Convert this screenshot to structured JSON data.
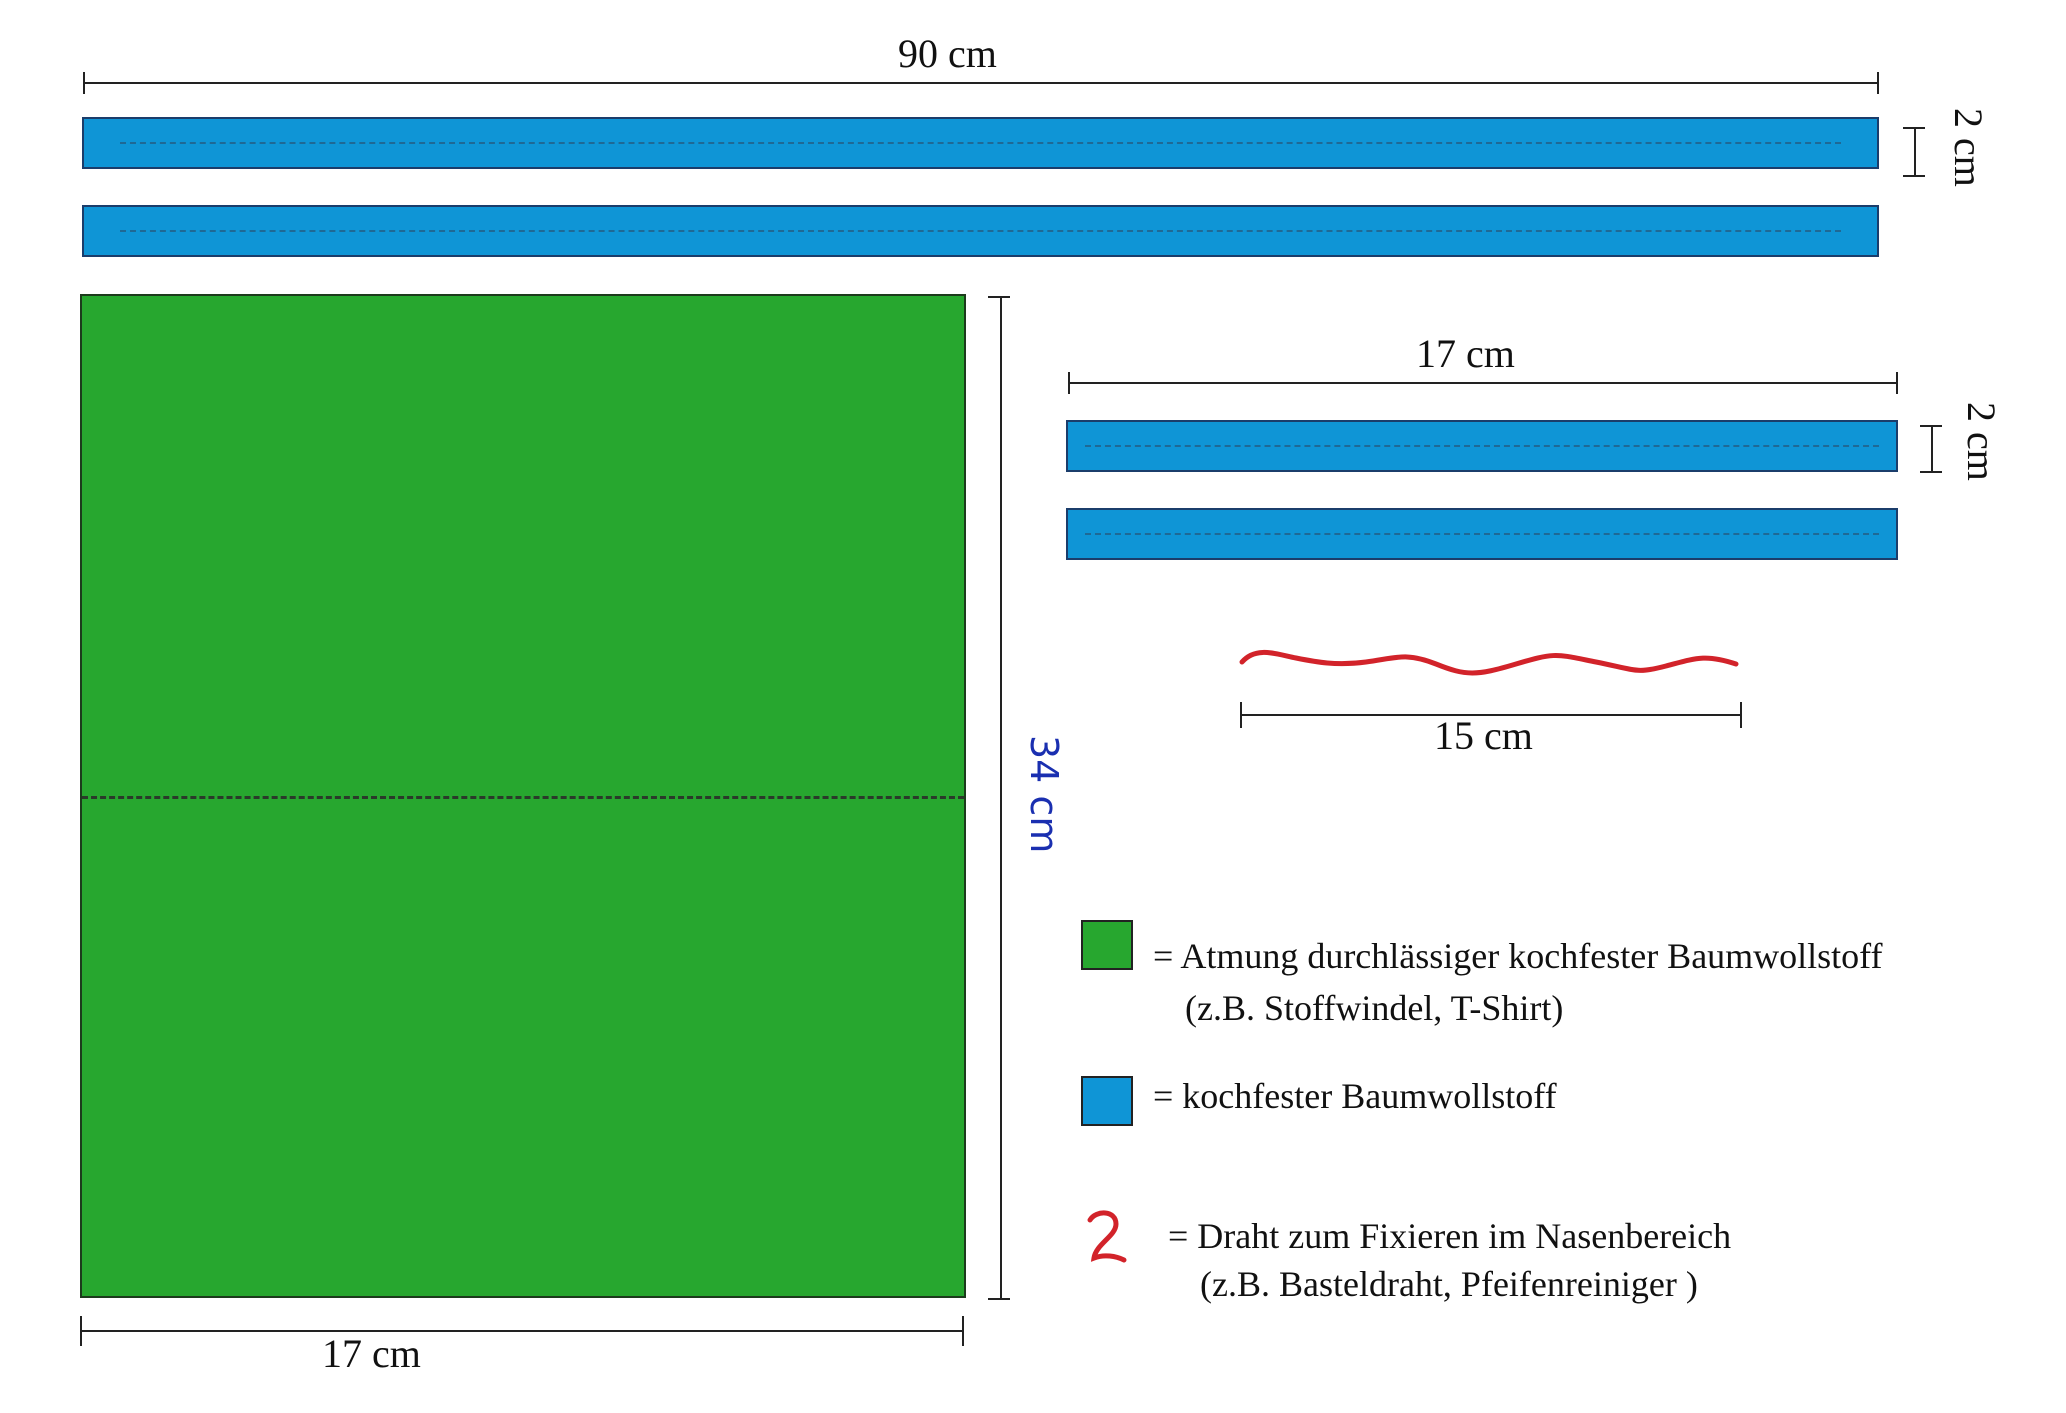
{
  "colors": {
    "fabric_green": "#27a72f",
    "fabric_blue": "#0f95d6",
    "wire_red": "#d2232a",
    "annotation_blue": "#1a2fb0"
  },
  "dimensions": {
    "long_strip_length": "90 cm",
    "long_strip_width": "2 cm",
    "short_strip_length": "17 cm",
    "short_strip_width": "2 cm",
    "wire_length": "15 cm",
    "panel_width": "17 cm",
    "panel_height": "34 cm"
  },
  "legend": [
    {
      "swatch": "fabric_green",
      "line1": "= Atmung durchlässiger kochfester Baumwollstoff",
      "line2": "(z.B.  Stoffwindel, T-Shirt)"
    },
    {
      "swatch": "fabric_blue",
      "line1": "= kochfester Baumwollstoff",
      "line2": ""
    },
    {
      "swatch": "wire-icon",
      "line1": "= Draht zum Fixieren im Nasenbereich",
      "line2": "(z.B.  Basteldraht, Pfeifenreiniger )"
    }
  ]
}
